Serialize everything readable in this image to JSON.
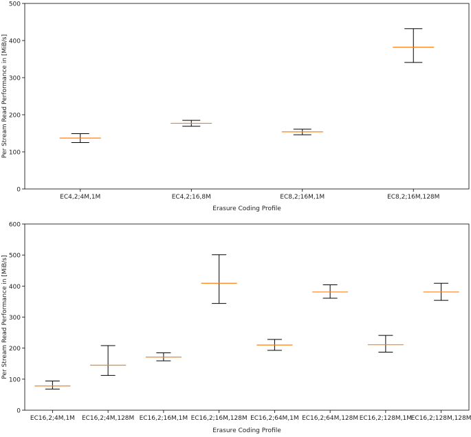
{
  "chart_data": [
    {
      "type": "boxplot",
      "xlabel": "Erasure Coding Profile",
      "ylabel": "Per Stream Read Performance in [MiB/s]",
      "ylim": [
        0,
        500
      ],
      "yticks": [
        0,
        100,
        200,
        300,
        400,
        500
      ],
      "categories": [
        "EC4,2;4M,1M",
        "EC4,2;16,8M",
        "EC8,2;16M,1M",
        "EC8,2;16M,128M"
      ],
      "median": [
        137,
        177,
        154,
        382
      ],
      "whisker_low": [
        125,
        169,
        146,
        341
      ],
      "whisker_high": [
        149,
        185,
        161,
        432
      ],
      "median_color": "#ff7f0e",
      "whisker_color": "#000000",
      "grid": false
    },
    {
      "type": "boxplot",
      "xlabel": "Erasure Coding Profile",
      "ylabel": "Per Stream Read Performance in [MiB/s]",
      "ylim": [
        0,
        600
      ],
      "yticks": [
        0,
        100,
        200,
        300,
        400,
        500,
        600
      ],
      "categories": [
        "EC16,2;4M,1M",
        "EC16,2;4M,128M",
        "EC16,2;16M,1M",
        "EC16,2;16M,128M",
        "EC16,2;64M,1M",
        "EC16,2;64M,128M",
        "EC16,2;128M,1M",
        "EC16,2;128M,128M"
      ],
      "median": [
        78,
        145,
        171,
        409,
        210,
        381,
        211,
        381
      ],
      "whisker_low": [
        68,
        112,
        159,
        344,
        193,
        361,
        187,
        354
      ],
      "whisker_high": [
        94,
        208,
        185,
        501,
        228,
        404,
        241,
        409
      ],
      "median_color": "#ff7f0e",
      "whisker_color": "#000000",
      "grid": false
    }
  ]
}
